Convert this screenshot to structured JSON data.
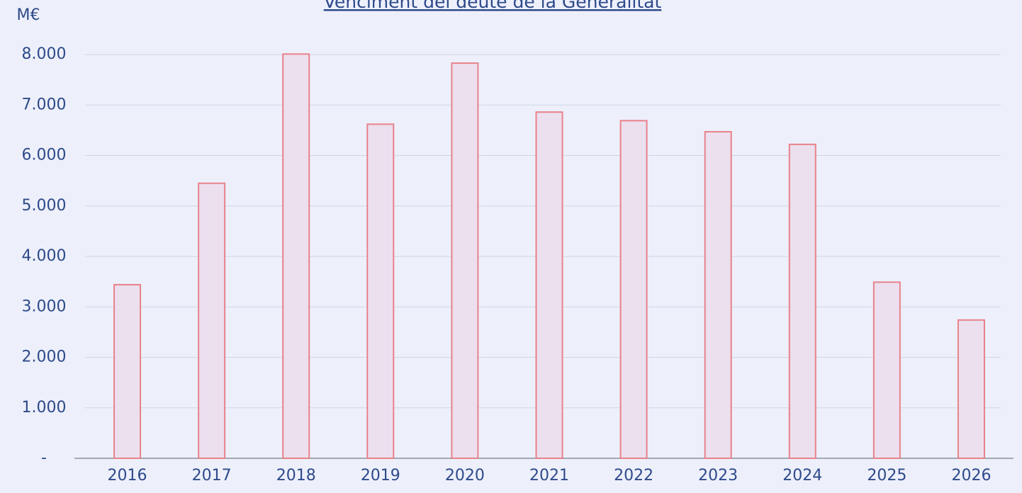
{
  "chart_data": {
    "type": "bar",
    "title": "Venciment del deute de la Generalitat",
    "y_label": "M€",
    "categories": [
      "2016",
      "2017",
      "2018",
      "2019",
      "2020",
      "2021",
      "2022",
      "2023",
      "2024",
      "2025",
      "2026"
    ],
    "values": [
      3440,
      5450,
      8010,
      6620,
      7830,
      6860,
      6690,
      6470,
      6220,
      3490,
      2740
    ],
    "color": "#ecdfee",
    "edge_color": "#e8828a",
    "ylim": [
      0,
      8000
    ],
    "yticks": [
      {
        "value": 0,
        "label": "-"
      },
      {
        "value": 1000,
        "label": "1.000"
      },
      {
        "value": 2000,
        "label": "2.000"
      },
      {
        "value": 3000,
        "label": "3.000"
      },
      {
        "value": 4000,
        "label": "4.000"
      },
      {
        "value": 5000,
        "label": "5.000"
      },
      {
        "value": 6000,
        "label": "6.000"
      },
      {
        "value": 7000,
        "label": "7.000"
      },
      {
        "value": 8000,
        "label": "8.000"
      }
    ],
    "grid": true
  }
}
